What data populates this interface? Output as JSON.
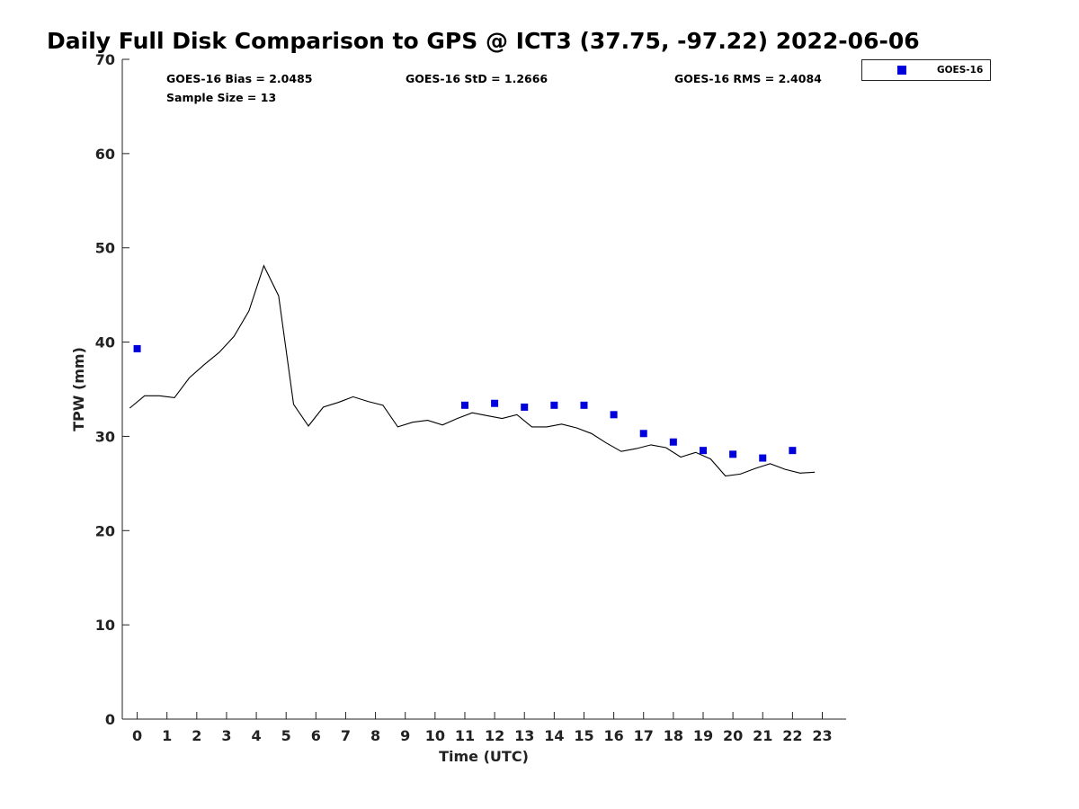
{
  "chart_data": {
    "type": "line",
    "title": "Daily Full Disk Comparison to GPS @ ICT3 (37.75, -97.22) 2022-06-06",
    "xlabel": "Time (UTC)",
    "ylabel": "TPW (mm)",
    "xlim": [
      -0.5,
      23.8
    ],
    "ylim": [
      0,
      70
    ],
    "x_ticks": [
      "0",
      "1",
      "2",
      "3",
      "4",
      "5",
      "6",
      "7",
      "8",
      "9",
      "10",
      "11",
      "12",
      "13",
      "14",
      "15",
      "16",
      "17",
      "18",
      "19",
      "20",
      "21",
      "22",
      "23"
    ],
    "y_ticks": [
      "0",
      "10",
      "20",
      "30",
      "40",
      "50",
      "60",
      "70"
    ],
    "stats": {
      "bias": "GOES-16 Bias = 2.0485",
      "std": "GOES-16 StD = 1.2666",
      "rms": "GOES-16 RMS = 2.4084",
      "sample_size": "Sample Size = 13"
    },
    "legend": {
      "placement": "top-right-outside",
      "entries": [
        "GOES-16"
      ]
    },
    "gps_line": {
      "color": "#000000",
      "x": [
        -0.25,
        0.25,
        0.75,
        1.25,
        1.75,
        2.25,
        2.75,
        3.25,
        3.75,
        4.25,
        4.75,
        5.25,
        5.75,
        6.25,
        6.75,
        7.25,
        7.75,
        8.25,
        8.75,
        9.25,
        9.75,
        10.25,
        10.75,
        11.25,
        11.75,
        12.25,
        12.75,
        13.25,
        13.75,
        14.25,
        14.75,
        15.25,
        15.75,
        16.25,
        16.75,
        17.25,
        17.75,
        18.25,
        18.75,
        19.25,
        19.75,
        20.25,
        20.75,
        21.25,
        21.75,
        22.25,
        22.75
      ],
      "y": [
        33.0,
        34.3,
        34.3,
        34.1,
        36.2,
        37.6,
        38.9,
        40.6,
        43.3,
        48.1,
        44.9,
        33.4,
        31.1,
        33.1,
        33.6,
        34.2,
        33.7,
        33.3,
        31.0,
        31.5,
        31.7,
        31.2,
        31.9,
        32.5,
        32.2,
        31.9,
        32.3,
        31.0,
        31.0,
        31.3,
        30.9,
        30.3,
        29.3,
        28.4,
        28.7,
        29.1,
        28.8,
        27.8,
        28.3,
        27.6,
        25.8,
        26.0,
        26.6,
        27.1,
        26.5,
        26.1,
        26.2
      ]
    },
    "series": [
      {
        "name": "GOES-16",
        "color": "#0000dd",
        "marker": "square",
        "x": [
          0,
          11,
          12,
          13,
          14,
          15,
          16,
          17,
          18,
          19,
          20,
          21,
          22
        ],
        "y": [
          39.3,
          33.3,
          33.5,
          33.1,
          33.3,
          33.3,
          32.3,
          30.3,
          29.4,
          28.5,
          28.1,
          27.7,
          28.5
        ]
      }
    ]
  }
}
